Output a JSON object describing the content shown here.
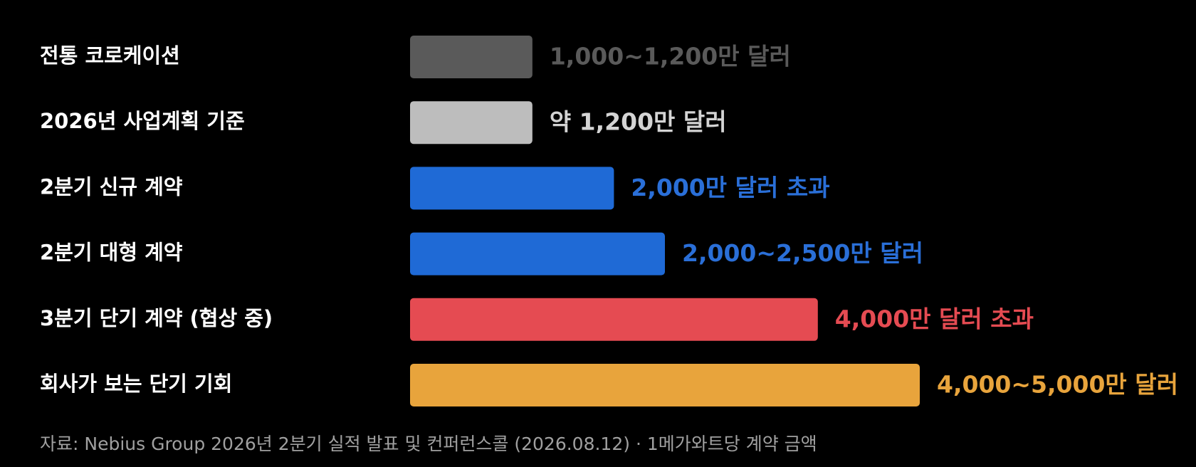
{
  "chart_data": {
    "type": "bar",
    "orientation": "horizontal",
    "categories": [
      "전통 코로케이션",
      "2026년 사업계획 기준",
      "2분기 신규 계약",
      "2분기 대형 계약",
      "3분기 단기 계약 (협상 중)",
      "회사가 보는 단기 기회"
    ],
    "values": [
      1200,
      1200,
      2000,
      2500,
      4000,
      5000
    ],
    "value_labels": [
      "1,000~1,200만 달러",
      "약 1,200만 달러",
      "2,000만 달러 초과",
      "2,000~2,500만 달러",
      "4,000만 달러 초과",
      "4,000~5,000만 달러"
    ],
    "colors": [
      "#5a5a5a",
      "#bdbdbd",
      "#1f6ad6",
      "#1f6ad6",
      "#e54b52",
      "#e8a43c"
    ],
    "label_colors": [
      "#5a5a5a",
      "#d4d4d4",
      "#2a6fd8",
      "#2a6fd8",
      "#e54b52",
      "#e8a43c"
    ],
    "source": "자료: Nebius Group 2026년 2분기 실적 발표 및 컨퍼런스콜 (2026.08.12) · 1메가와트당 계약 금액"
  }
}
